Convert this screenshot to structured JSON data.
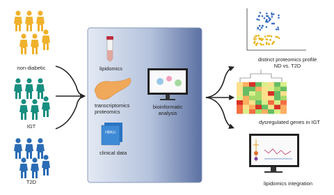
{
  "groups": [
    {
      "label": "non-diabetic"
    },
    {
      "label": "IGT"
    },
    {
      "label": "T2D"
    }
  ],
  "inputs": {
    "lipidomics": "lipidomics",
    "omics": [
      "transcriptomics",
      "proteomics"
    ],
    "card": "HBA1c",
    "clinical": "clinical data"
  },
  "analysis": [
    "bioinformatic",
    "analysis"
  ],
  "outputs": [
    {
      "lines": [
        "distinct proteomics profile",
        "ND vs. T2D"
      ]
    },
    {
      "lines": [
        "dysregulated genes in IGT"
      ]
    },
    {
      "lines": [
        "lipidomics integration"
      ]
    }
  ]
}
